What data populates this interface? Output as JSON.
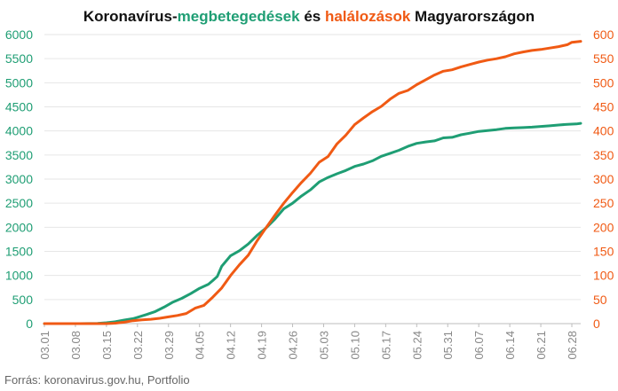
{
  "chart_data": {
    "type": "line",
    "title_parts": [
      {
        "text": "Koronavírus-",
        "color": "#111111"
      },
      {
        "text": "megbetegedések",
        "color": "#1f9e74"
      },
      {
        "text": " és ",
        "color": "#111111"
      },
      {
        "text": "halálozások",
        "color": "#f05a14"
      },
      {
        "text": " Magyarországon",
        "color": "#111111"
      }
    ],
    "source": "Forrás: koronavirus.gov.hu, Portfolio",
    "x_tick_labels": [
      "03.01",
      "03.08",
      "03.15",
      "03.22",
      "03.29",
      "04.05",
      "04.12",
      "04.19",
      "04.26",
      "05.03",
      "05.10",
      "05.17",
      "05.24",
      "05.31",
      "06.07",
      "06.14",
      "06.21",
      "06.28"
    ],
    "x_tick_days": [
      0,
      7,
      14,
      21,
      28,
      35,
      42,
      49,
      56,
      63,
      70,
      77,
      84,
      91,
      98,
      105,
      112,
      119
    ],
    "y_left": {
      "min": 0,
      "max": 6000,
      "ticks": [
        0,
        500,
        1000,
        1500,
        2000,
        2500,
        3000,
        3500,
        4000,
        4500,
        5000,
        5500,
        6000
      ],
      "color": "#1f9e74"
    },
    "y_right": {
      "min": 0,
      "max": 600,
      "ticks": [
        0,
        50,
        100,
        150,
        200,
        250,
        300,
        350,
        400,
        450,
        500,
        550,
        600
      ],
      "color": "#f05a14"
    },
    "grid": true,
    "series": [
      {
        "key": "cases",
        "axis": "left",
        "color": "#1f9e74",
        "points": [
          [
            0,
            0
          ],
          [
            4,
            0
          ],
          [
            8,
            0
          ],
          [
            12,
            4
          ],
          [
            14,
            19
          ],
          [
            16,
            39
          ],
          [
            18,
            73
          ],
          [
            20,
            103
          ],
          [
            21,
            131
          ],
          [
            23,
            187
          ],
          [
            25,
            250
          ],
          [
            27,
            343
          ],
          [
            29,
            447
          ],
          [
            31,
            525
          ],
          [
            33,
            623
          ],
          [
            35,
            733
          ],
          [
            37,
            817
          ],
          [
            38,
            895
          ],
          [
            39,
            980
          ],
          [
            40,
            1190
          ],
          [
            42,
            1410
          ],
          [
            44,
            1512
          ],
          [
            46,
            1652
          ],
          [
            48,
            1834
          ],
          [
            50,
            1984
          ],
          [
            52,
            2168
          ],
          [
            54,
            2383
          ],
          [
            56,
            2500
          ],
          [
            58,
            2649
          ],
          [
            60,
            2775
          ],
          [
            62,
            2942
          ],
          [
            64,
            3035
          ],
          [
            66,
            3111
          ],
          [
            68,
            3178
          ],
          [
            70,
            3263
          ],
          [
            72,
            3313
          ],
          [
            74,
            3380
          ],
          [
            76,
            3473
          ],
          [
            78,
            3535
          ],
          [
            80,
            3598
          ],
          [
            82,
            3680
          ],
          [
            84,
            3741
          ],
          [
            86,
            3771
          ],
          [
            88,
            3793
          ],
          [
            90,
            3856
          ],
          [
            92,
            3867
          ],
          [
            94,
            3921
          ],
          [
            96,
            3954
          ],
          [
            98,
            3990
          ],
          [
            100,
            4008
          ],
          [
            102,
            4027
          ],
          [
            104,
            4053
          ],
          [
            106,
            4064
          ],
          [
            108,
            4070
          ],
          [
            110,
            4078
          ],
          [
            112,
            4094
          ],
          [
            114,
            4107
          ],
          [
            116,
            4122
          ],
          [
            118,
            4138
          ],
          [
            120,
            4145
          ],
          [
            121,
            4157
          ]
        ]
      },
      {
        "key": "deaths",
        "axis": "right",
        "color": "#f05a14",
        "points": [
          [
            0,
            0
          ],
          [
            14,
            0
          ],
          [
            16,
            1
          ],
          [
            18,
            3
          ],
          [
            20,
            6
          ],
          [
            22,
            8
          ],
          [
            24,
            9
          ],
          [
            26,
            11
          ],
          [
            28,
            14
          ],
          [
            30,
            17
          ],
          [
            32,
            21
          ],
          [
            34,
            32
          ],
          [
            36,
            38
          ],
          [
            38,
            55
          ],
          [
            40,
            74
          ],
          [
            42,
            100
          ],
          [
            44,
            122
          ],
          [
            46,
            142
          ],
          [
            48,
            172
          ],
          [
            50,
            199
          ],
          [
            52,
            225
          ],
          [
            54,
            250
          ],
          [
            56,
            272
          ],
          [
            58,
            293
          ],
          [
            60,
            312
          ],
          [
            62,
            335
          ],
          [
            64,
            347
          ],
          [
            66,
            373
          ],
          [
            68,
            391
          ],
          [
            70,
            413
          ],
          [
            72,
            427
          ],
          [
            74,
            440
          ],
          [
            76,
            451
          ],
          [
            78,
            466
          ],
          [
            80,
            478
          ],
          [
            82,
            484
          ],
          [
            84,
            496
          ],
          [
            86,
            506
          ],
          [
            88,
            516
          ],
          [
            90,
            524
          ],
          [
            92,
            527
          ],
          [
            94,
            533
          ],
          [
            96,
            538
          ],
          [
            98,
            543
          ],
          [
            100,
            547
          ],
          [
            102,
            550
          ],
          [
            104,
            554
          ],
          [
            106,
            560
          ],
          [
            108,
            564
          ],
          [
            110,
            567
          ],
          [
            112,
            569
          ],
          [
            114,
            572
          ],
          [
            116,
            575
          ],
          [
            118,
            579
          ],
          [
            119,
            584
          ],
          [
            121,
            586
          ]
        ]
      }
    ]
  }
}
